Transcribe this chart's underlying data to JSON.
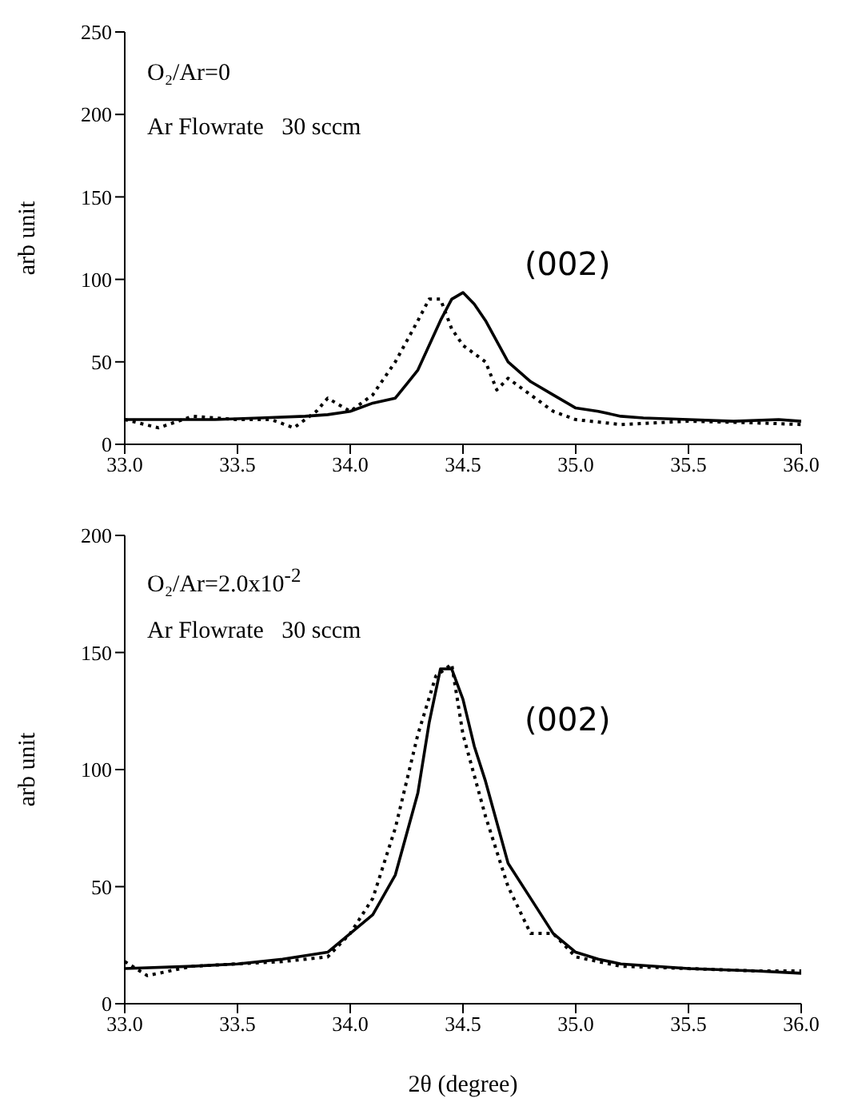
{
  "chart_data": [
    {
      "type": "line",
      "ylabel": "arb unit",
      "xlim": [
        33,
        36
      ],
      "xticks": [
        {
          "value": 33,
          "label": "33.0"
        },
        {
          "value": 33.5,
          "label": "33.5"
        },
        {
          "value": 34,
          "label": "34.0"
        },
        {
          "value": 34.5,
          "label": "34.5"
        },
        {
          "value": 35,
          "label": "35.0"
        },
        {
          "value": 35.5,
          "label": "35.5"
        },
        {
          "value": 36,
          "label": "36.0"
        }
      ],
      "ylim": [
        0,
        250
      ],
      "yticks": [
        0,
        50,
        100,
        150,
        200,
        250
      ],
      "annotations": [
        "O₂/Ar=0",
        "Ar Flowrate   30 sccm",
        "(002)"
      ],
      "series": [
        {
          "color": "#000000",
          "line_style": "solid",
          "x": [
            33,
            33.2,
            33.4,
            33.6,
            33.8,
            33.9,
            34,
            34.1,
            34.2,
            34.3,
            34.4,
            34.45,
            34.5,
            34.55,
            34.6,
            34.7,
            34.8,
            34.9,
            35,
            35.1,
            35.2,
            35.3,
            35.5,
            35.7,
            35.9,
            36
          ],
          "values": [
            15,
            15,
            15,
            16,
            17,
            18,
            20,
            25,
            28,
            45,
            75,
            88,
            92,
            85,
            75,
            50,
            38,
            30,
            22,
            20,
            17,
            16,
            15,
            14,
            15,
            14
          ]
        },
        {
          "color": "#000000",
          "line_style": "dotted",
          "x": [
            33,
            33.15,
            33.3,
            33.5,
            33.65,
            33.75,
            33.85,
            33.9,
            34,
            34.1,
            34.2,
            34.3,
            34.35,
            34.4,
            34.45,
            34.5,
            34.6,
            34.65,
            34.7,
            34.8,
            34.9,
            35,
            35.2,
            35.5,
            35.8,
            36
          ],
          "values": [
            15,
            10,
            17,
            15,
            15,
            10,
            20,
            28,
            20,
            30,
            50,
            75,
            88,
            88,
            70,
            60,
            50,
            33,
            40,
            30,
            20,
            15,
            12,
            14,
            13,
            12
          ]
        }
      ]
    },
    {
      "type": "line",
      "xlabel": "2θ  (degree)",
      "ylabel": "arb unit",
      "xlim": [
        33,
        36
      ],
      "xticks": [
        {
          "value": 33,
          "label": "33.0"
        },
        {
          "value": 33.5,
          "label": "33.5"
        },
        {
          "value": 34,
          "label": "34.0"
        },
        {
          "value": 34.5,
          "label": "34.5"
        },
        {
          "value": 35,
          "label": "35.0"
        },
        {
          "value": 35.5,
          "label": "35.5"
        },
        {
          "value": 36,
          "label": "36.0"
        }
      ],
      "ylim": [
        0,
        200
      ],
      "yticks": [
        0,
        50,
        100,
        150,
        200
      ],
      "annotations": [
        "O₂/Ar=2.0x10$^{-2}$",
        "Ar Flowrate   30 sccm",
        "(002)"
      ],
      "series": [
        {
          "color": "#000000",
          "line_style": "solid",
          "x": [
            33,
            33.3,
            33.5,
            33.7,
            33.9,
            34,
            34.1,
            34.2,
            34.3,
            34.35,
            34.4,
            34.45,
            34.5,
            34.55,
            34.6,
            34.7,
            34.8,
            34.9,
            35,
            35.1,
            35.2,
            35.5,
            35.8,
            36
          ],
          "values": [
            15,
            16,
            17,
            19,
            22,
            30,
            38,
            55,
            90,
            120,
            143,
            143,
            130,
            110,
            95,
            60,
            45,
            30,
            22,
            19,
            17,
            15,
            14,
            13
          ]
        },
        {
          "color": "#000000",
          "line_style": "dotted",
          "x": [
            33,
            33.1,
            33.3,
            33.5,
            33.7,
            33.9,
            34,
            34.1,
            34.2,
            34.3,
            34.38,
            34.45,
            34.5,
            34.6,
            34.7,
            34.8,
            34.9,
            35,
            35.2,
            35.5,
            35.8,
            36
          ],
          "values": [
            18,
            12,
            16,
            17,
            18,
            20,
            30,
            45,
            75,
            115,
            140,
            145,
            115,
            80,
            50,
            30,
            30,
            20,
            16,
            15,
            14,
            14
          ]
        }
      ]
    }
  ]
}
